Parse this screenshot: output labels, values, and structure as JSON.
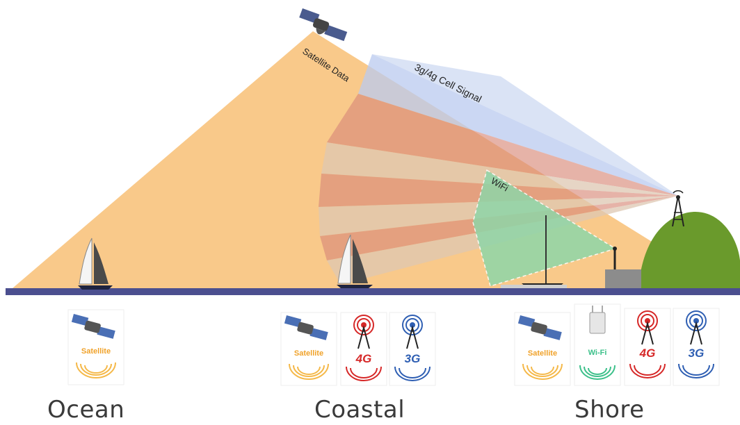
{
  "diagram": {
    "signals": {
      "satellite": "Satellite Data",
      "cell": "3g/4g Cell Signal",
      "wifi": "WiFi"
    },
    "zones": [
      {
        "name": "Ocean",
        "icons": [
          "Satellite"
        ]
      },
      {
        "name": "Coastal",
        "icons": [
          "Satellite",
          "4G",
          "3G"
        ]
      },
      {
        "name": "Shore",
        "icons": [
          "Satellite",
          "Wi-Fi",
          "4G",
          "3G"
        ]
      }
    ],
    "icon_names": [
      "satellite-icon",
      "cell-tower-icon",
      "sailboat-icon",
      "wifi-router-icon"
    ],
    "colors": {
      "satellite_beam": "#f9c98a",
      "cell_beam": "#b9c9ef",
      "cell_stripe": "#d98a7a",
      "wifi_zone": "#8fd6a8",
      "ground": "#4b4f8f",
      "hill": "#6a9a2c",
      "label_satellite": "#f0a22a",
      "label_4g": "#d62828",
      "label_3g": "#2f5fb3",
      "label_wifi": "#3cc08a"
    }
  }
}
